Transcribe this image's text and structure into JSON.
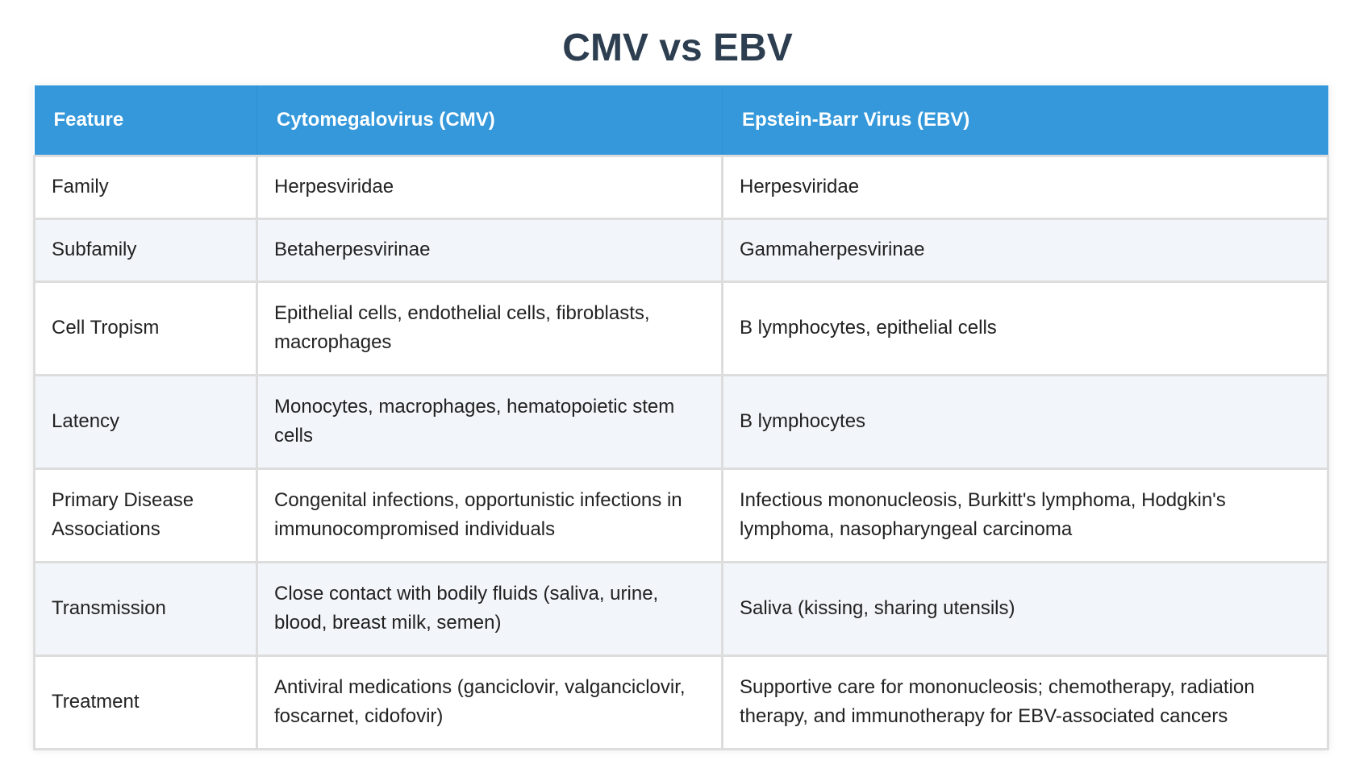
{
  "title": "CMV vs EBV",
  "colors": {
    "header_bg": "#3498db",
    "header_text": "#ffffff",
    "title_text": "#2c3e50",
    "row_alt_bg": "#f2f5f9",
    "border": "#dddddd"
  },
  "table": {
    "headers": [
      "Feature",
      "Cytomegalovirus (CMV)",
      "Epstein-Barr Virus (EBV)"
    ],
    "rows": [
      [
        "Family",
        "Herpesviridae",
        "Herpesviridae"
      ],
      [
        "Subfamily",
        "Betaherpesvirinae",
        "Gammaherpesvirinae"
      ],
      [
        "Cell Tropism",
        "Epithelial cells, endothelial cells, fibroblasts, macrophages",
        "B lymphocytes, epithelial cells"
      ],
      [
        "Latency",
        "Monocytes, macrophages, hematopoietic stem cells",
        "B lymphocytes"
      ],
      [
        "Primary Disease Associations",
        "Congenital infections, opportunistic infections in immunocompromised individuals",
        "Infectious mononucleosis, Burkitt's lymphoma, Hodgkin's lymphoma, nasopharyngeal carcinoma"
      ],
      [
        "Transmission",
        "Close contact with bodily fluids (saliva, urine, blood, breast milk, semen)",
        "Saliva (kissing, sharing utensils)"
      ],
      [
        "Treatment",
        "Antiviral medications (ganciclovir, valganciclovir, foscarnet, cidofovir)",
        "Supportive care for mononucleosis; chemotherapy, radiation therapy, and immunotherapy for EBV-associated cancers"
      ]
    ]
  }
}
